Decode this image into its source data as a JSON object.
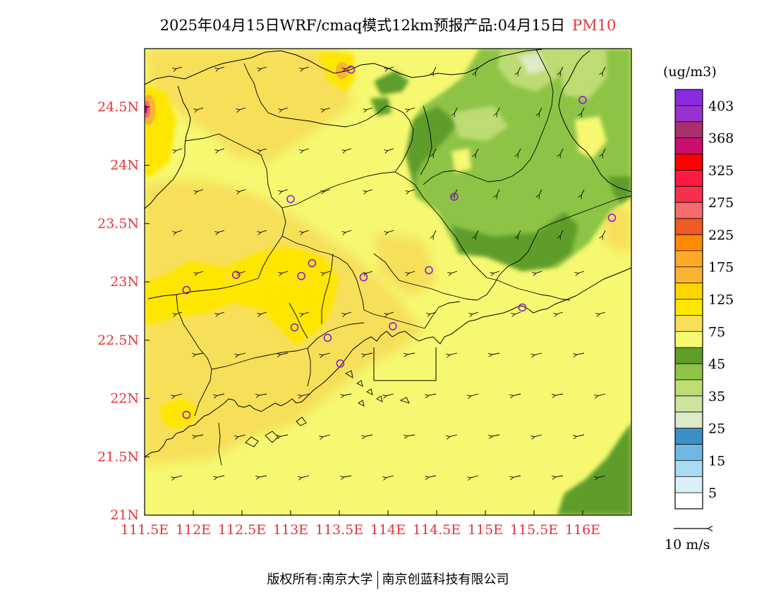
{
  "title": {
    "text": "2025年04月15日WRF/cmaq模式12km预报产品:04月15日",
    "species": "PM10",
    "species_color": "#e8333a"
  },
  "map": {
    "lon_range": [
      111.5,
      116.5
    ],
    "lat_range": [
      21,
      25
    ],
    "lon_ticks": [
      111.5,
      112,
      112.5,
      113,
      113.5,
      114,
      114.5,
      115,
      115.5,
      116
    ],
    "lon_tick_labels": [
      "111.5E",
      "112E",
      "112.5E",
      "113E",
      "113.5E",
      "114E",
      "114.5E",
      "115E",
      "115.5E",
      "116E"
    ],
    "lat_ticks": [
      21,
      21.5,
      22,
      22.5,
      23,
      23.5,
      24,
      24.5
    ],
    "lat_tick_labels": [
      "21N",
      "21.5N",
      "22N",
      "22.5N",
      "23N",
      "23.5N",
      "24N",
      "24.5N"
    ],
    "label_color": "#e8333a",
    "stations": [
      {
        "lon": 113.62,
        "lat": 24.82
      },
      {
        "lon": 116.0,
        "lat": 24.56
      },
      {
        "lon": 113.0,
        "lat": 23.71
      },
      {
        "lon": 114.68,
        "lat": 23.73
      },
      {
        "lon": 116.3,
        "lat": 23.55
      },
      {
        "lon": 113.22,
        "lat": 23.16
      },
      {
        "lon": 112.44,
        "lat": 23.06
      },
      {
        "lon": 113.11,
        "lat": 23.05
      },
      {
        "lon": 113.75,
        "lat": 23.04
      },
      {
        "lon": 114.42,
        "lat": 23.1
      },
      {
        "lon": 111.93,
        "lat": 22.93
      },
      {
        "lon": 115.38,
        "lat": 22.78
      },
      {
        "lon": 113.04,
        "lat": 22.61
      },
      {
        "lon": 114.05,
        "lat": 22.62
      },
      {
        "lon": 113.38,
        "lat": 22.52
      },
      {
        "lon": 113.51,
        "lat": 22.3
      },
      {
        "lon": 111.93,
        "lat": 21.86
      }
    ],
    "station_color": "#8b1fd0"
  },
  "colorbar": {
    "unit": "(ug/m3)",
    "colors": [
      "#ffffff",
      "#d9f0f8",
      "#a8dcf3",
      "#6eb8e4",
      "#3e8fc8",
      "#dfeac6",
      "#cde3a0",
      "#bddc73",
      "#8dc445",
      "#5f9d2c",
      "#f5f870",
      "#f7df5a",
      "#ffe600",
      "#ffd500",
      "#f9b333",
      "#ffaa27",
      "#ff8a00",
      "#f15a24",
      "#f86b6b",
      "#f7314c",
      "#ff1a42",
      "#ff0000",
      "#c80f6e",
      "#a8306c",
      "#9932cc",
      "#8a2be2"
    ],
    "labels": [
      "5",
      "15",
      "25",
      "35",
      "45",
      "75",
      "125",
      "175",
      "225",
      "275",
      "325",
      "368",
      "403"
    ]
  },
  "wind_legend": {
    "label": "10 m/s"
  },
  "footer": {
    "left": "版权所有:南京大学",
    "right": "南京创蓝科技有限公司"
  }
}
